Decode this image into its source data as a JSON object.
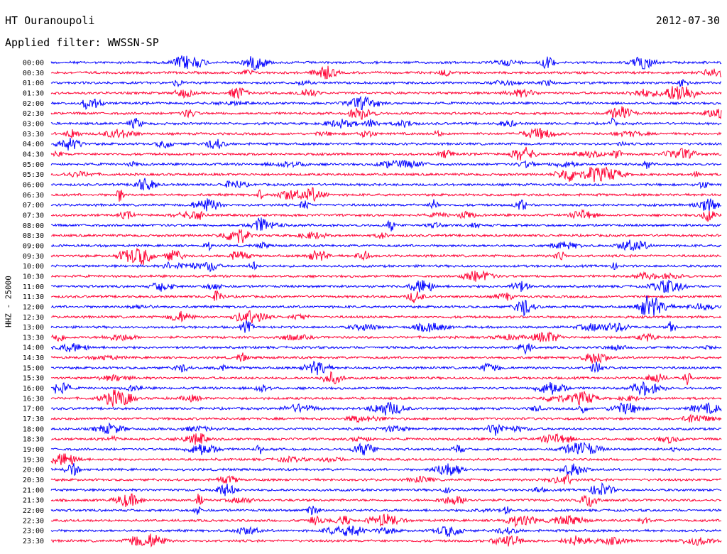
{
  "header": {
    "station": "HT Ouranoupoli",
    "date": "2012-07-30",
    "filter": "Applied filter: WWSSN-SP"
  },
  "colors": {
    "blue_trace": "#0000ff",
    "red_trace": "#ff0033"
  },
  "chart_data": {
    "type": "line",
    "ylabel": "HHZ - 25000",
    "trace_color_order": [
      "blue",
      "red"
    ],
    "row_labels": [
      "00:00",
      "00:30",
      "01:00",
      "01:30",
      "02:00",
      "02:30",
      "03:00",
      "03:30",
      "04:00",
      "04:30",
      "05:00",
      "05:30",
      "06:00",
      "06:30",
      "07:00",
      "07:30",
      "08:00",
      "08:30",
      "09:00",
      "09:30",
      "10:00",
      "10:30",
      "11:00",
      "11:30",
      "12:00",
      "12:30",
      "13:00",
      "13:30",
      "14:00",
      "14:30",
      "15:00",
      "15:30",
      "16:00",
      "16:30",
      "17:00",
      "17:30",
      "18:00",
      "18:30",
      "19:00",
      "19:30",
      "20:00",
      "20:30",
      "21:00",
      "21:30",
      "22:00",
      "22:30",
      "23:00",
      "23:30"
    ]
  }
}
